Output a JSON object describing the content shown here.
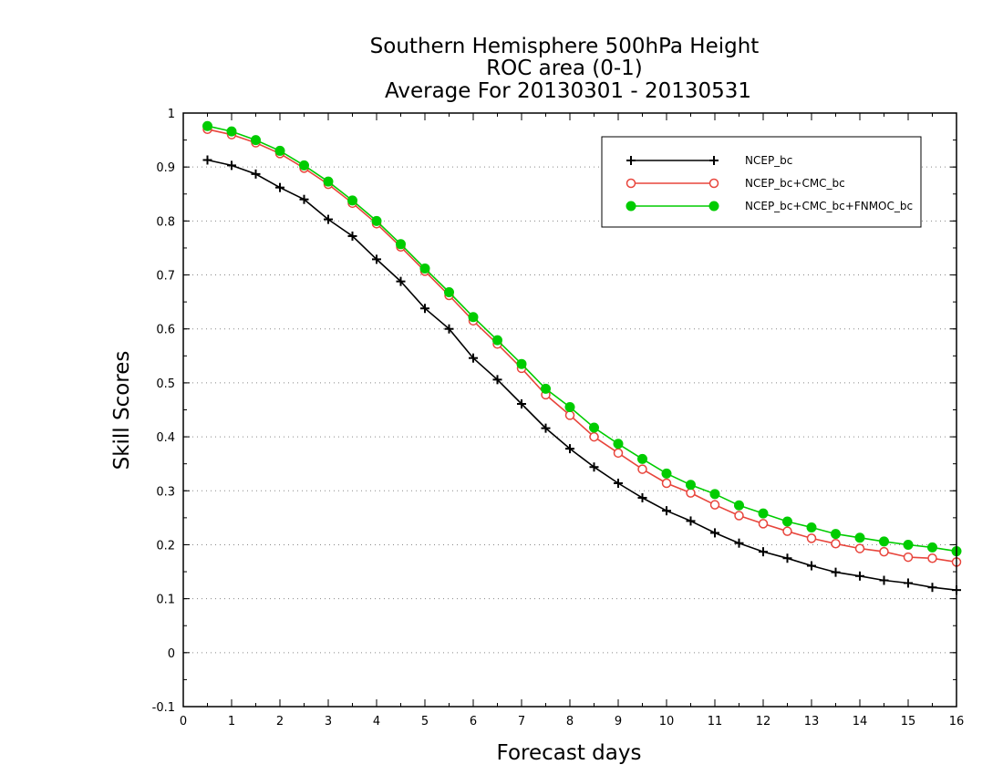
{
  "chart_data": {
    "type": "line",
    "title_lines": [
      "Southern Hemisphere 500hPa Height",
      "ROC area (0-1)",
      "Average For 20130301 - 20130531"
    ],
    "xlabel": "Forecast days",
    "ylabel": "Skill Scores",
    "xlim": [
      0,
      16
    ],
    "ylim": [
      -0.1,
      1
    ],
    "xticks": [
      0,
      1,
      2,
      3,
      4,
      5,
      6,
      7,
      8,
      9,
      10,
      11,
      12,
      13,
      14,
      15,
      16
    ],
    "xtick_labels": [
      "0",
      "1",
      "2",
      "3",
      "4",
      "5",
      "6",
      "7",
      "8",
      "9",
      "10",
      "11",
      "12",
      "13",
      "14",
      "15",
      "16"
    ],
    "yticks": [
      -0.1,
      0,
      0.1,
      0.2,
      0.3,
      0.4,
      0.5,
      0.6,
      0.7,
      0.8,
      0.9,
      1
    ],
    "ytick_labels": [
      "-0.1",
      "0",
      "0.1",
      "0.2",
      "0.3",
      "0.4",
      "0.5",
      "0.6",
      "0.7",
      "0.8",
      "0.9",
      "1"
    ],
    "grid": "horizontal dotted",
    "legend_position": "top-right",
    "x": [
      0.5,
      1,
      1.5,
      2,
      2.5,
      3,
      3.5,
      4,
      4.5,
      5,
      5.5,
      6,
      6.5,
      7,
      7.5,
      8,
      8.5,
      9,
      9.5,
      10,
      10.5,
      11,
      11.5,
      12,
      12.5,
      13,
      13.5,
      14,
      14.5,
      15,
      15.5,
      16
    ],
    "series": [
      {
        "name": "NCEP_bc",
        "color": "#000000",
        "marker": "plus",
        "values": [
          0.913,
          0.903,
          0.887,
          0.862,
          0.84,
          0.803,
          0.772,
          0.729,
          0.688,
          0.638,
          0.6,
          0.546,
          0.506,
          0.461,
          0.416,
          0.378,
          0.344,
          0.314,
          0.287,
          0.263,
          0.244,
          0.222,
          0.203,
          0.187,
          0.175,
          0.161,
          0.149,
          0.142,
          0.134,
          0.129,
          0.121,
          0.116
        ]
      },
      {
        "name": "NCEP_bc+CMC_bc",
        "color": "#e8453c",
        "marker": "open-circle",
        "values": [
          0.97,
          0.96,
          0.945,
          0.925,
          0.898,
          0.868,
          0.833,
          0.795,
          0.752,
          0.707,
          0.662,
          0.615,
          0.572,
          0.527,
          0.478,
          0.44,
          0.4,
          0.37,
          0.34,
          0.314,
          0.296,
          0.274,
          0.254,
          0.239,
          0.225,
          0.212,
          0.202,
          0.193,
          0.187,
          0.177,
          0.175,
          0.168
        ]
      },
      {
        "name": "NCEP_bc+CMC_bc+FNMOC_bc",
        "color": "#00cc00",
        "marker": "filled-circle",
        "values": [
          0.976,
          0.966,
          0.95,
          0.93,
          0.903,
          0.873,
          0.838,
          0.8,
          0.757,
          0.712,
          0.668,
          0.622,
          0.579,
          0.535,
          0.489,
          0.455,
          0.417,
          0.387,
          0.359,
          0.332,
          0.311,
          0.294,
          0.273,
          0.258,
          0.243,
          0.232,
          0.22,
          0.213,
          0.206,
          0.2,
          0.195,
          0.188
        ]
      }
    ]
  }
}
